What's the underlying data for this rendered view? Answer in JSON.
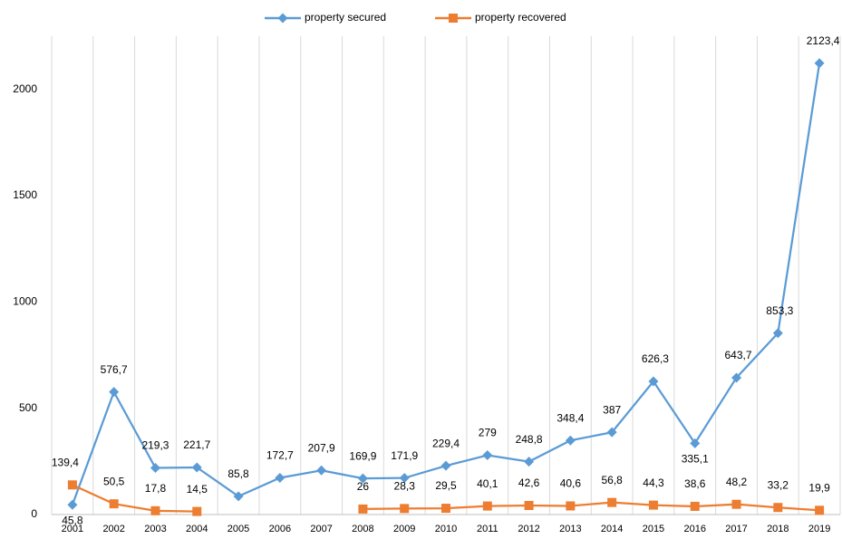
{
  "chart_data": {
    "type": "line",
    "categories": [
      "2001",
      "2002",
      "2003",
      "2004",
      "2005",
      "2006",
      "2007",
      "2008",
      "2009",
      "2010",
      "2011",
      "2012",
      "2013",
      "2014",
      "2015",
      "2016",
      "2017",
      "2018",
      "2019"
    ],
    "series": [
      {
        "name": "property secured",
        "color": "#5b9bd5",
        "marker": "diamond",
        "values": [
          45.8,
          576.7,
          219.3,
          221.7,
          85.8,
          172.7,
          207.9,
          169.9,
          171.9,
          229.4,
          279,
          248.8,
          348.4,
          387,
          626.3,
          335.1,
          643.7,
          853.3,
          2123.4
        ],
        "value_labels": [
          "45,8",
          "576,7",
          "219,3",
          "221,7",
          "85,8",
          "172,7",
          "207,9",
          "169,9",
          "171,9",
          "229,4",
          "279",
          "248,8",
          "348,4",
          "387",
          "626,3",
          "335,1",
          "643,7",
          "853,3",
          "2123,4"
        ]
      },
      {
        "name": "property recovered",
        "color": "#ed7d31",
        "marker": "square",
        "values": [
          139.4,
          50.5,
          17.8,
          14.5,
          null,
          null,
          null,
          26,
          28.3,
          29.5,
          40.1,
          42.6,
          40.6,
          56.8,
          44.3,
          38.6,
          48.2,
          33.2,
          19.9
        ],
        "value_labels": [
          "139,4",
          "50,5",
          "17,8",
          "14,5",
          null,
          null,
          null,
          "26",
          "28,3",
          "29,5",
          "40,1",
          "42,6",
          "40,6",
          "56,8",
          "44,3",
          "38,6",
          "48,2",
          "33,2",
          "19,9"
        ]
      }
    ],
    "ylim": [
      0,
      2250
    ],
    "yticks": [
      0,
      500,
      1000,
      1500,
      2000
    ],
    "grid": "vertical",
    "legend": "top"
  }
}
